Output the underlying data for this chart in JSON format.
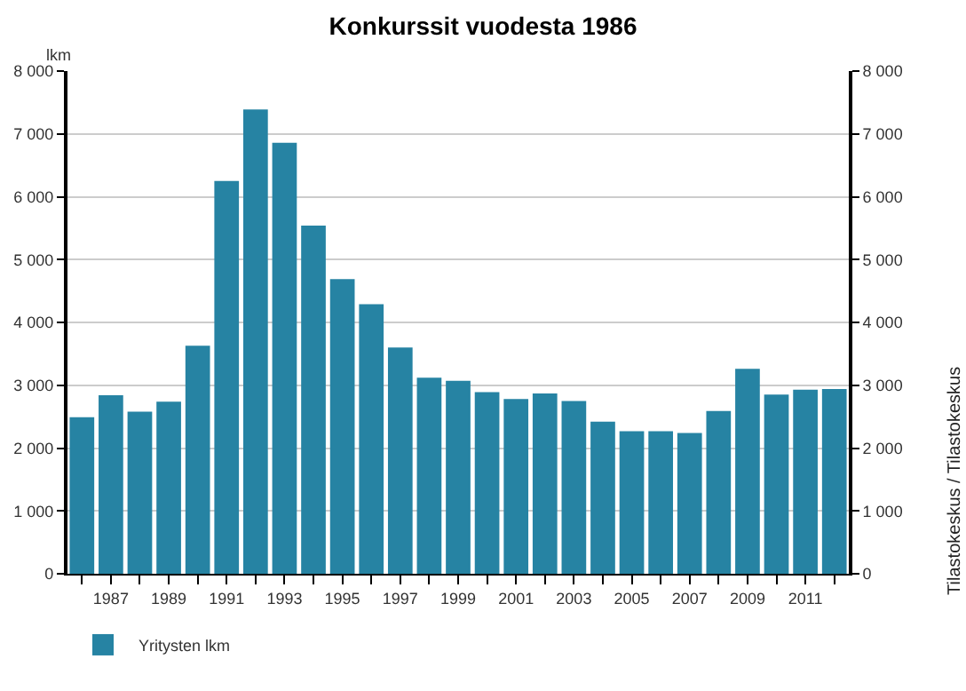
{
  "chart_data": {
    "type": "bar",
    "title": "Konkurssit vuodesta 1986",
    "ylabel": "lkm",
    "x": [
      1986,
      1987,
      1988,
      1989,
      1990,
      1991,
      1992,
      1993,
      1994,
      1995,
      1996,
      1997,
      1998,
      1999,
      2000,
      2001,
      2002,
      2003,
      2004,
      2005,
      2006,
      2007,
      2008,
      2009,
      2010,
      2011,
      2012
    ],
    "series": [
      {
        "name": "Yritysten lkm",
        "color": "#2683a3",
        "values": [
          2490,
          2840,
          2580,
          2740,
          3630,
          6250,
          7390,
          6860,
          5540,
          4690,
          4290,
          3600,
          3120,
          3070,
          2890,
          2780,
          2870,
          2750,
          2420,
          2270,
          2270,
          2240,
          2590,
          3260,
          2850,
          2930,
          2940
        ]
      }
    ],
    "xlim": [
      1985.5,
      2012.5
    ],
    "xticks": [
      {
        "value": 1986,
        "label": null
      },
      1987,
      {
        "value": 1988,
        "label": null
      },
      1989,
      {
        "value": 1990,
        "label": null
      },
      1991,
      {
        "value": 1992,
        "label": null
      },
      1993,
      {
        "value": 1994,
        "label": null
      },
      1995,
      {
        "value": 1996,
        "label": null
      },
      1997,
      {
        "value": 1998,
        "label": null
      },
      1999,
      {
        "value": 2000,
        "label": null
      },
      2001,
      {
        "value": 2002,
        "label": null
      },
      2003,
      {
        "value": 2004,
        "label": null
      },
      2005,
      {
        "value": 2006,
        "label": null
      },
      2007,
      {
        "value": 2008,
        "label": null
      },
      2009,
      {
        "value": 2010,
        "label": null
      },
      2011,
      {
        "value": 2012,
        "label": null
      }
    ],
    "ylim": [
      0,
      8000
    ],
    "yticks": [
      0,
      {
        "value": 1000,
        "label": "1 000"
      },
      {
        "value": 2000,
        "label": "2 000"
      },
      {
        "value": 3000,
        "label": "3 000"
      },
      {
        "value": 4000,
        "label": "4 000"
      },
      {
        "value": 5000,
        "label": "5 000"
      },
      {
        "value": 6000,
        "label": "6 000"
      },
      {
        "value": 7000,
        "label": "7 000"
      },
      {
        "value": 8000,
        "label": "8 000"
      }
    ],
    "y2lim": [
      0,
      8000
    ],
    "y2ticks": [
      0,
      {
        "value": 1000,
        "label": "1 000"
      },
      {
        "value": 2000,
        "label": "2 000"
      },
      {
        "value": 3000,
        "label": "3 000"
      },
      {
        "value": 4000,
        "label": "4 000"
      },
      {
        "value": 5000,
        "label": "5 000"
      },
      {
        "value": 6000,
        "label": "6 000"
      },
      {
        "value": 7000,
        "label": "7 000"
      },
      {
        "value": 8000,
        "label": "8 000"
      }
    ],
    "grid": "y",
    "legend": "bottom left",
    "annotations": [
      "Tilastokeskus / Tilastokeskus"
    ]
  }
}
